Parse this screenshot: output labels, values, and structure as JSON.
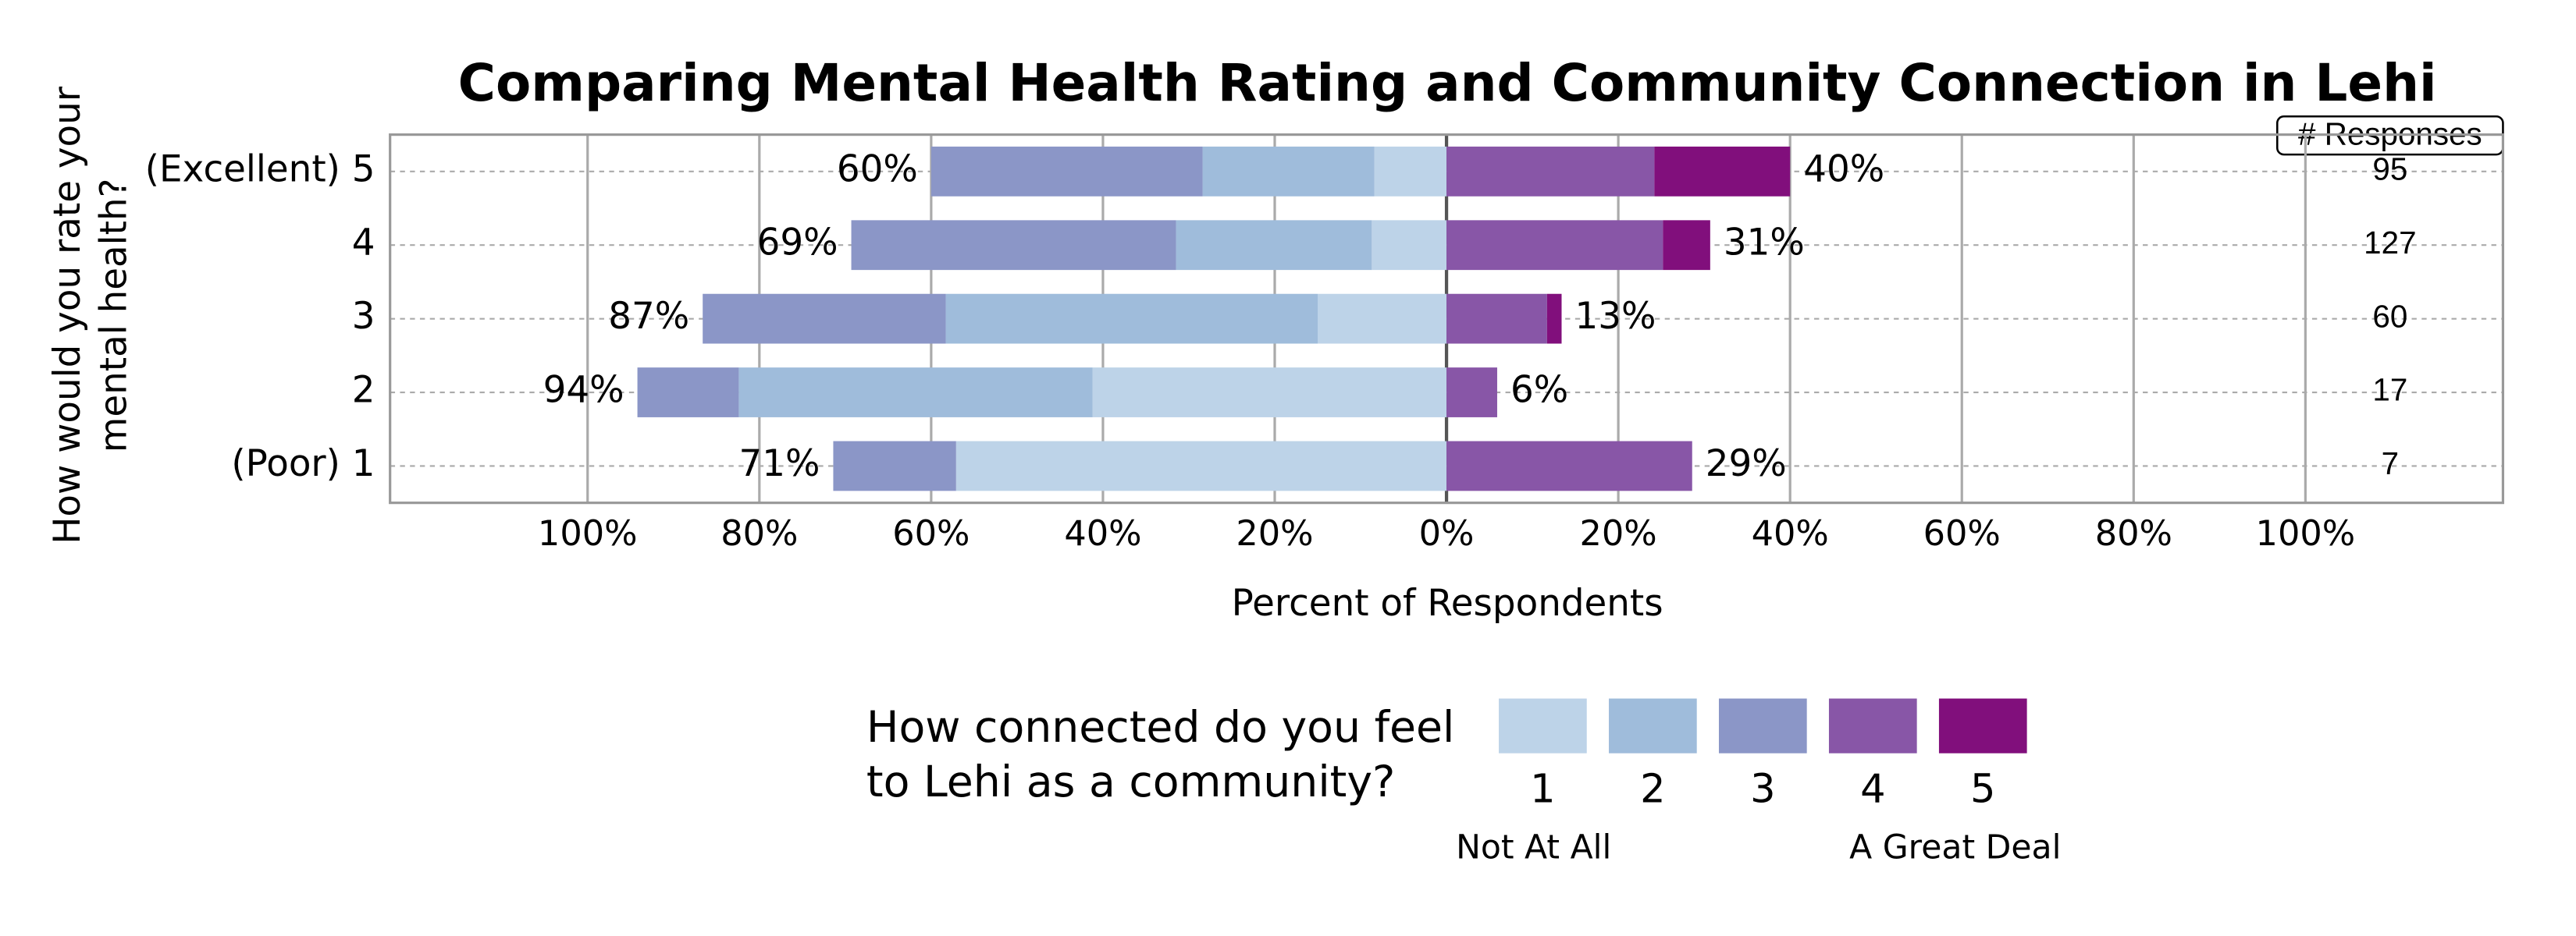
{
  "chart_data": {
    "type": "diverging_bar",
    "title": "Comparing Mental Health Rating and Community Connection in Lehi",
    "y_label": [
      "How would you rate your",
      "mental health?"
    ],
    "x_label": "Percent of Respondents",
    "categories": [
      "(Excellent) 5",
      "4",
      "3",
      "2",
      "(Poor) 1"
    ],
    "series": [
      {
        "name": "1",
        "color": "#bdd3e8",
        "values": [
          -8.4,
          -8.7,
          -15.0,
          -41.2,
          -57.1
        ]
      },
      {
        "name": "2",
        "color": "#9fbcdb",
        "values": [
          -20.0,
          -22.8,
          -43.3,
          -41.2,
          0
        ]
      },
      {
        "name": "3",
        "color": "#8b96c7",
        "values": [
          -31.6,
          -37.8,
          -28.3,
          -11.8,
          -14.3
        ]
      },
      {
        "name": "4",
        "color": "#8856a7",
        "values": [
          24.2,
          25.2,
          11.7,
          5.9,
          28.6
        ]
      },
      {
        "name": "5",
        "color": "#810f7c",
        "values": [
          15.8,
          5.5,
          1.7,
          0,
          0
        ]
      }
    ],
    "left_totals": [
      60,
      69,
      87,
      94,
      71
    ],
    "left_total_labels": [
      "60%",
      "69%",
      "87%",
      "94%",
      "71%"
    ],
    "right_totals": [
      40,
      31,
      13,
      6,
      29
    ],
    "right_total_labels": [
      "40%",
      "31%",
      "13%",
      "6%",
      "29%"
    ],
    "responses_title": "# Responses",
    "responses": [
      95,
      127,
      60,
      17,
      7
    ],
    "xlim": [
      -123,
      123
    ],
    "xticks": [
      {
        "value": -100,
        "label": "100%"
      },
      {
        "value": -80,
        "label": "80%"
      },
      {
        "value": -60,
        "label": "60%"
      },
      {
        "value": -40,
        "label": "40%"
      },
      {
        "value": -20,
        "label": "20%"
      },
      {
        "value": 0,
        "label": "0%"
      },
      {
        "value": 20,
        "label": "20%"
      },
      {
        "value": 40,
        "label": "40%"
      },
      {
        "value": 60,
        "label": "60%"
      },
      {
        "value": 80,
        "label": "80%"
      },
      {
        "value": 100,
        "label": "100%"
      }
    ],
    "grid": true,
    "legend_title": [
      "How connected do you feel",
      "to Lehi as a community?"
    ],
    "legend_low": "Not At All",
    "legend_high": "A Great Deal"
  }
}
